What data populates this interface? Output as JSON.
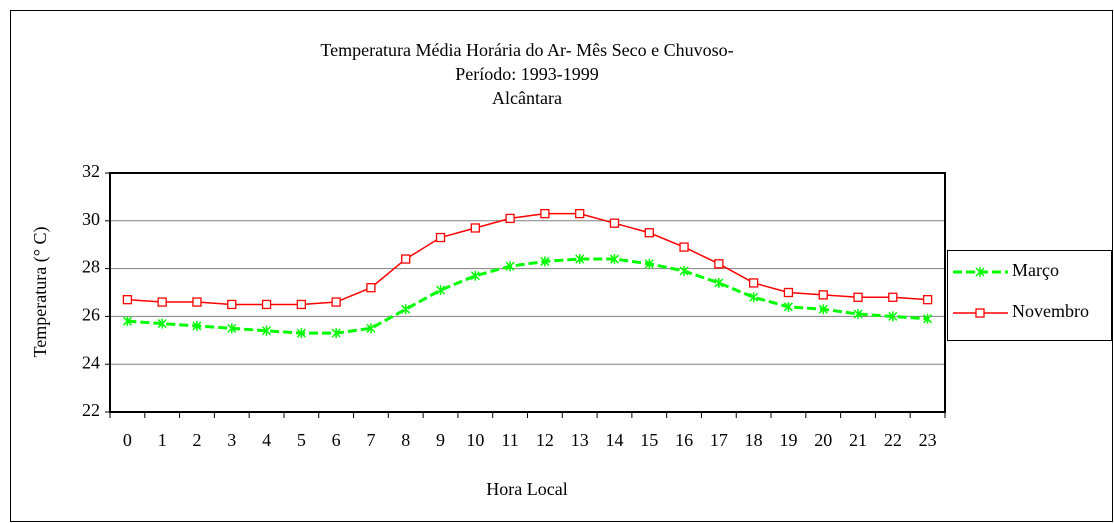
{
  "chart_data": {
    "type": "line",
    "title": [
      "Temperatura Média Horária do Ar- Mês Seco e Chuvoso-",
      "Período: 1993-1999",
      "Alcântara"
    ],
    "x_label": "Hora Local",
    "y_label": "Temperatura (° C)",
    "categories": [
      "0",
      "1",
      "2",
      "3",
      "4",
      "5",
      "6",
      "7",
      "8",
      "9",
      "10",
      "11",
      "12",
      "13",
      "14",
      "15",
      "16",
      "17",
      "18",
      "19",
      "20",
      "21",
      "22",
      "23"
    ],
    "series": [
      {
        "name": "Março",
        "color": "#00ff00",
        "marker": "asterisk",
        "dashed": true,
        "values": [
          25.8,
          25.7,
          25.6,
          25.5,
          25.4,
          25.3,
          25.3,
          25.5,
          26.3,
          27.1,
          27.7,
          28.1,
          28.3,
          28.4,
          28.4,
          28.2,
          27.9,
          27.4,
          26.8,
          26.4,
          26.3,
          26.1,
          26.0,
          25.9
        ]
      },
      {
        "name": "Novembro",
        "color": "#ff0000",
        "marker": "square",
        "dashed": false,
        "values": [
          26.7,
          26.6,
          26.6,
          26.5,
          26.5,
          26.5,
          26.6,
          27.2,
          28.4,
          29.3,
          29.7,
          30.1,
          30.3,
          30.3,
          29.9,
          29.5,
          28.9,
          28.2,
          27.4,
          27.0,
          26.9,
          26.8,
          26.8,
          26.7
        ]
      }
    ],
    "ylim": [
      22,
      32
    ],
    "yticks": [
      22,
      24,
      26,
      28,
      30,
      32
    ],
    "grid": true,
    "legend": "right"
  }
}
